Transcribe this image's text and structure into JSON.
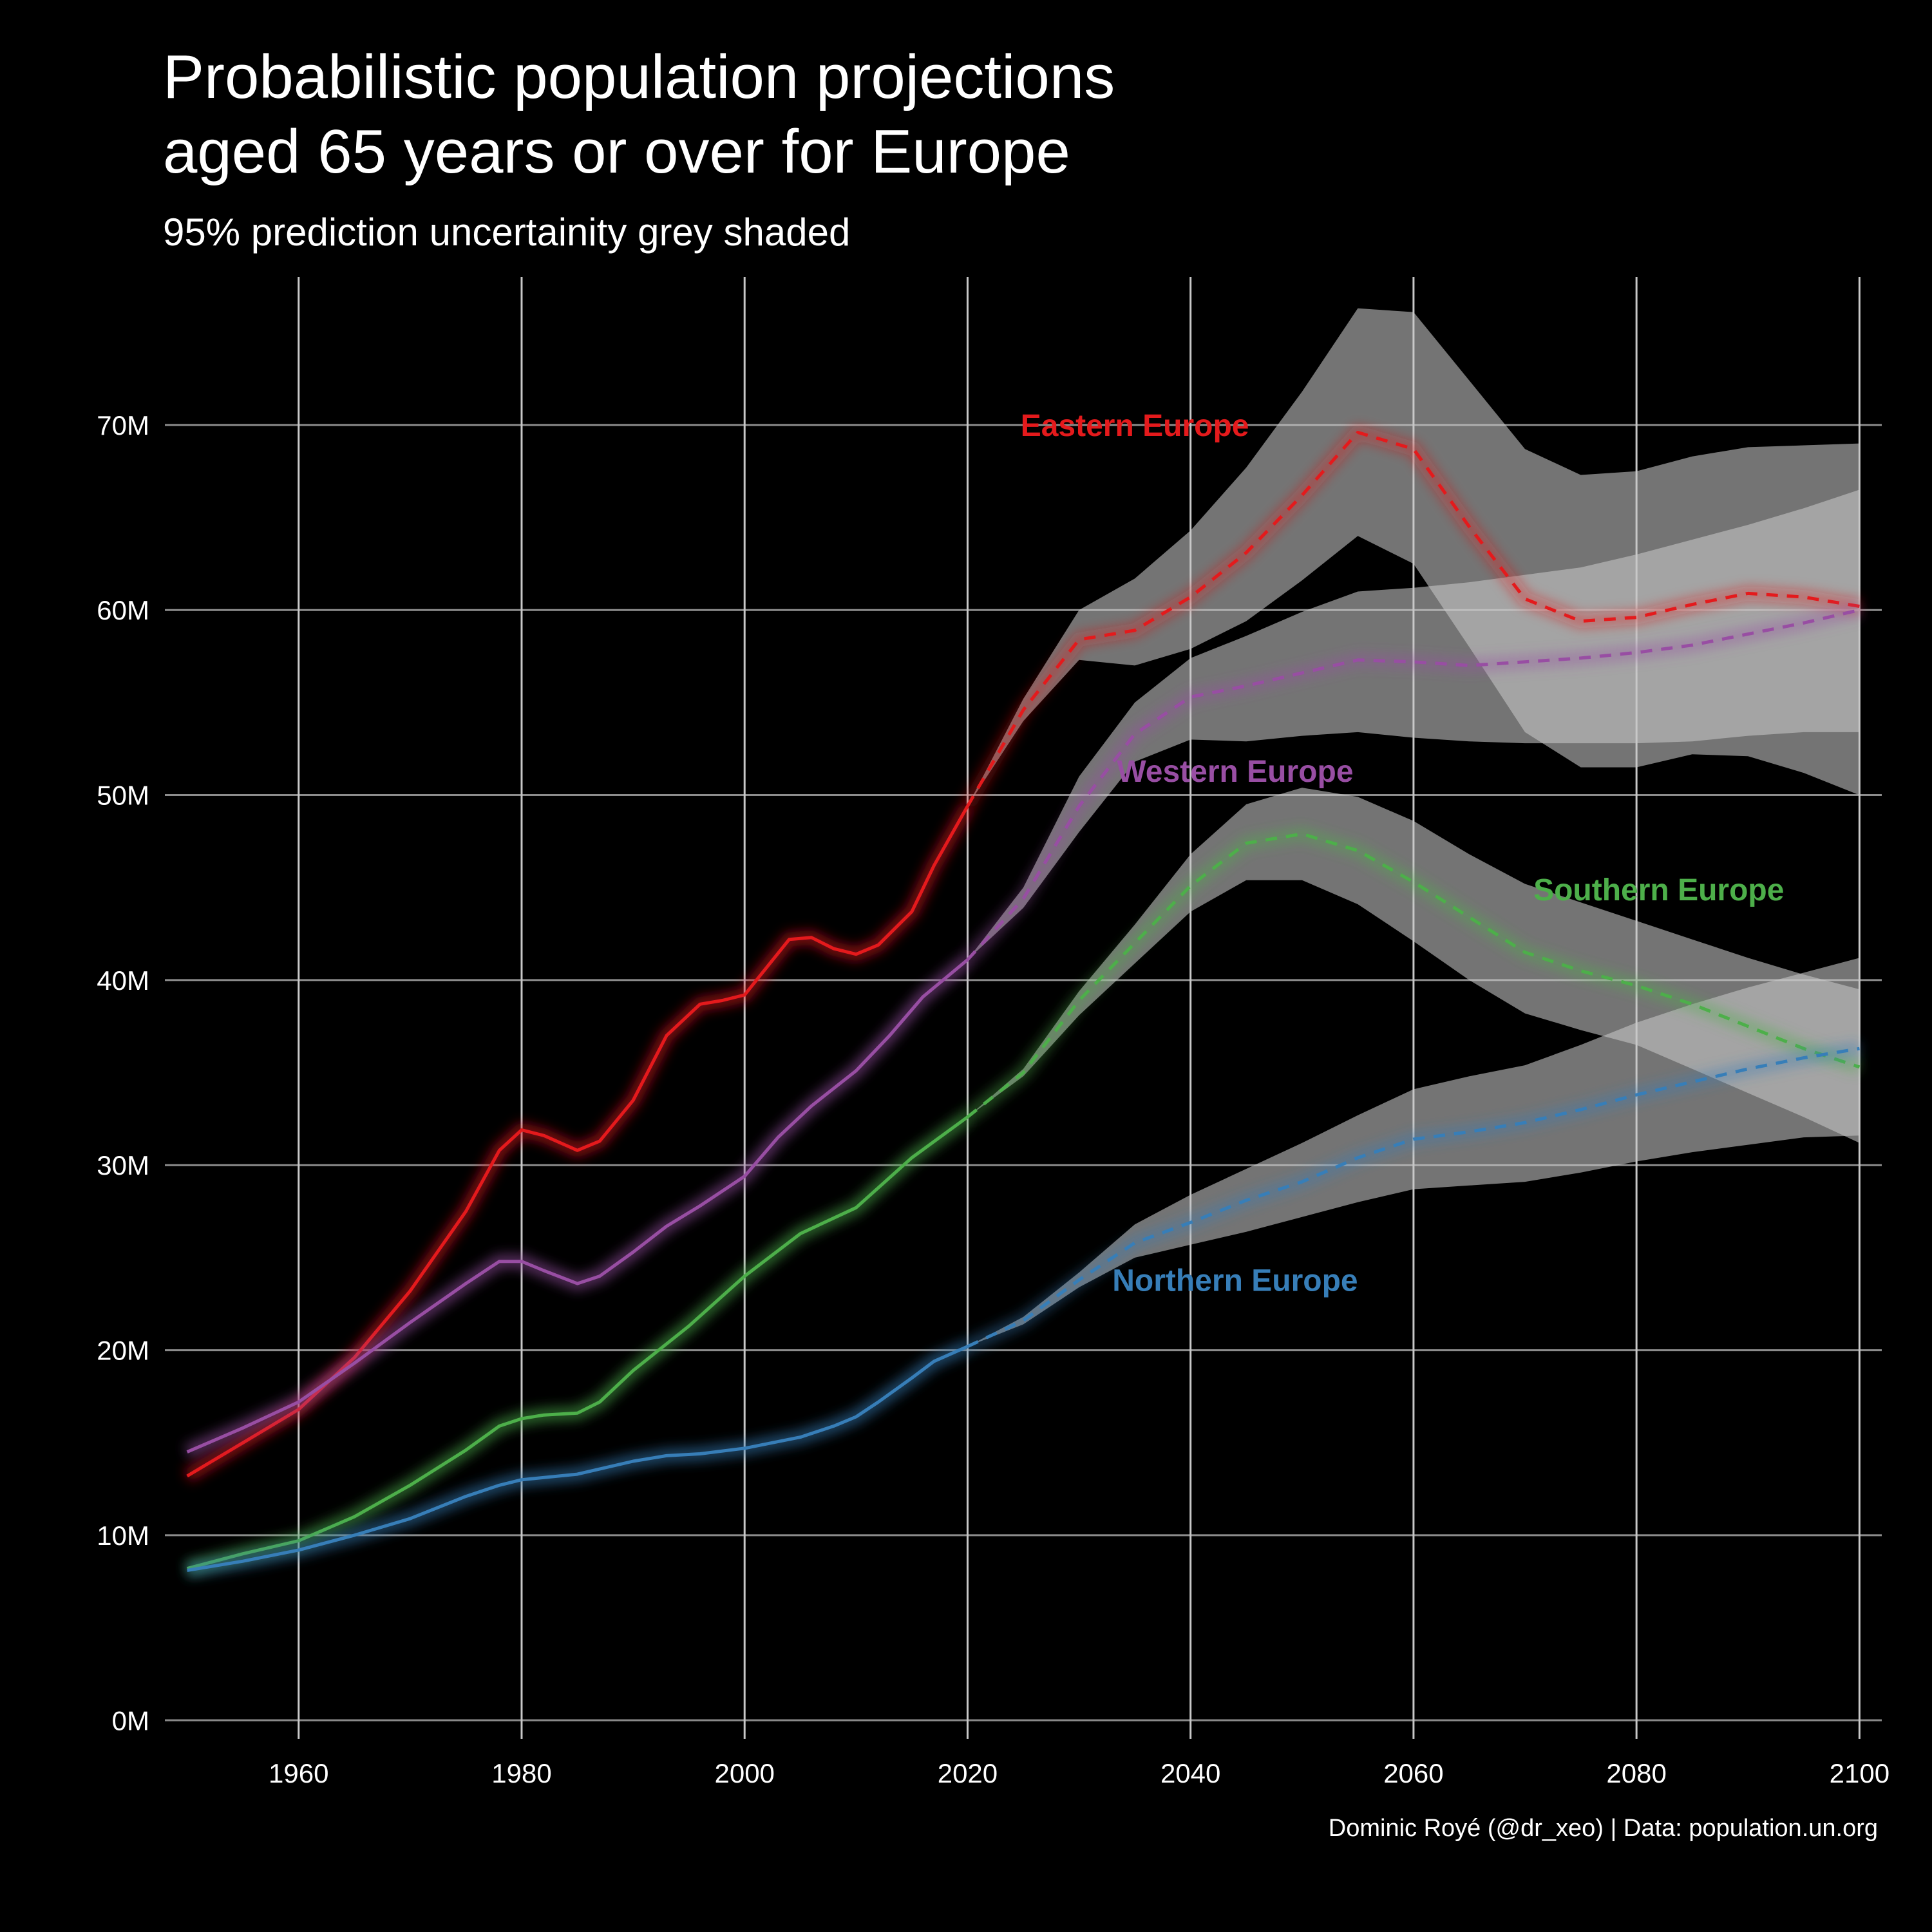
{
  "header": {
    "title": "Probabilistic population projections\naged 65 years or over for Europe",
    "subtitle": "95% prediction uncertainity grey shaded",
    "caption": "Dominic Royé (@dr_xeo) | Data: population.un.org"
  },
  "chart_data": {
    "type": "line",
    "title": "Probabilistic population projections aged 65 years or over for Europe",
    "subtitle": "95% prediction uncertainity grey shaded",
    "xlabel": "",
    "ylabel": "",
    "xlim": [
      1948,
      2102
    ],
    "ylim": [
      -1,
      78
    ],
    "x_ticks": [
      1960,
      1980,
      2000,
      2020,
      2040,
      2060,
      2080,
      2100
    ],
    "x_tick_labels": [
      "1960",
      "1980",
      "2000",
      "2020",
      "2040",
      "2060",
      "2080",
      "2100"
    ],
    "y_ticks": [
      0,
      10,
      20,
      30,
      40,
      50,
      60,
      70
    ],
    "y_tick_labels": [
      "0M",
      "10M",
      "20M",
      "30M",
      "40M",
      "50M",
      "60M",
      "70M"
    ],
    "grid": true,
    "legend": "none (direct labels)",
    "background": "#000000",
    "band_color": "#c8c8c8",
    "series": [
      {
        "name": "Eastern Europe",
        "color": "#e41a1c",
        "label_at": [
          2035,
          70
        ],
        "historic": {
          "x": [
            1950,
            1955,
            1960,
            1965,
            1970,
            1975,
            1978,
            1980,
            1982,
            1985,
            1987,
            1990,
            1993,
            1996,
            1998,
            2000,
            2002,
            2004,
            2006,
            2008,
            2010,
            2012,
            2015,
            2017,
            2020
          ],
          "y": [
            13.2,
            15,
            16.8,
            19.6,
            23.2,
            27.5,
            30.8,
            31.9,
            31.6,
            30.8,
            31.3,
            33.5,
            37,
            38.7,
            38.9,
            39.2,
            40.7,
            42.2,
            42.3,
            41.7,
            41.4,
            41.9,
            43.7,
            46.2,
            49.4
          ]
        },
        "projection": {
          "x": [
            2020,
            2025,
            2030,
            2035,
            2040,
            2045,
            2050,
            2055,
            2060,
            2065,
            2070,
            2075,
            2080,
            2085,
            2090,
            2095,
            2100
          ],
          "y": [
            49.4,
            54.6,
            58.4,
            58.9,
            60.7,
            63.1,
            66.2,
            69.6,
            68.7,
            64.5,
            60.6,
            59.4,
            59.6,
            60.3,
            60.9,
            60.7,
            60.2
          ]
        },
        "lower": [
          49.4,
          54,
          57.3,
          57,
          57.9,
          59.4,
          61.6,
          64,
          62.5,
          null,
          null,
          null,
          null,
          null,
          null,
          null,
          null
        ],
        "upper": [
          49.4,
          55.2,
          60,
          61.7,
          64.3,
          67.7,
          71.8,
          76.3,
          76.1,
          null,
          null,
          null,
          null,
          null,
          null,
          null,
          null
        ],
        "lower_tail_x": [
          2060,
          2065,
          2070,
          2075,
          2080,
          2085,
          2090,
          2095,
          2100
        ],
        "lower_tail": [
          62.5,
          58,
          53.4,
          51.5,
          51.5,
          52.2,
          52.1,
          51.2,
          50
        ],
        "upper_tail": [
          76.1,
          72.4,
          68.7,
          67.3,
          67.5,
          68.3,
          68.8,
          68.9,
          69
        ]
      },
      {
        "name": "Western Europe",
        "color": "#984ea3",
        "label_at": [
          2044,
          51.3
        ],
        "historic": {
          "x": [
            1950,
            1955,
            1960,
            1965,
            1970,
            1975,
            1978,
            1980,
            1982,
            1985,
            1987,
            1990,
            1993,
            1996,
            2000,
            2003,
            2006,
            2010,
            2013,
            2016,
            2020
          ],
          "y": [
            14.5,
            15.8,
            17.2,
            19.3,
            21.5,
            23.6,
            24.8,
            24.8,
            24.3,
            23.6,
            24,
            25.3,
            26.7,
            27.8,
            29.4,
            31.5,
            33.2,
            35.1,
            37,
            39.1,
            41.1
          ]
        },
        "projection": {
          "x": [
            2020,
            2025,
            2030,
            2035,
            2040,
            2045,
            2050,
            2055,
            2060,
            2065,
            2070,
            2075,
            2080,
            2085,
            2090,
            2095,
            2100
          ],
          "y": [
            41.1,
            44.4,
            49.4,
            53.3,
            55.3,
            55.9,
            56.6,
            57.3,
            57.2,
            57,
            57.2,
            57.4,
            57.7,
            58.1,
            58.7,
            59.3,
            60
          ]
        },
        "lower": [
          41.1,
          43.9,
          48,
          51.8,
          53,
          52.9,
          53.2,
          53.4,
          53.1,
          52.9,
          52.8,
          52.8,
          52.8,
          52.9,
          53.2,
          53.4,
          53.4
        ],
        "upper": [
          41.1,
          45,
          51,
          55,
          57.4,
          58.6,
          59.9,
          61,
          61.2,
          61.5,
          61.9,
          62.3,
          63,
          63.8,
          64.6,
          65.5,
          66.5
        ]
      },
      {
        "name": "Southern Europe",
        "color": "#4daf4a",
        "label_at": [
          2082,
          44.9
        ],
        "historic": {
          "x": [
            1950,
            1955,
            1960,
            1965,
            1970,
            1975,
            1978,
            1980,
            1982,
            1985,
            1987,
            1990,
            1995,
            2000,
            2005,
            2010,
            2015,
            2020
          ],
          "y": [
            8.2,
            9,
            9.7,
            11,
            12.7,
            14.6,
            15.9,
            16.3,
            16.5,
            16.6,
            17.2,
            18.9,
            21.3,
            24,
            26.3,
            27.7,
            30.4,
            32.6
          ]
        },
        "projection": {
          "x": [
            2020,
            2025,
            2030,
            2035,
            2040,
            2045,
            2050,
            2055,
            2060,
            2065,
            2070,
            2075,
            2080,
            2085,
            2090,
            2095,
            2100
          ],
          "y": [
            32.6,
            35,
            38.9,
            42,
            45.1,
            47.4,
            47.9,
            47,
            45.3,
            43.4,
            41.5,
            40.5,
            39.7,
            38.7,
            37.5,
            36.3,
            35.3
          ]
        },
        "lower": [
          32.6,
          34.8,
          38.1,
          40.9,
          43.7,
          45.4,
          45.4,
          44.1,
          42.1,
          40,
          38.2,
          37.3,
          36.5,
          35.2,
          33.9,
          32.6,
          31.2
        ],
        "upper": [
          32.6,
          35.2,
          39.4,
          43,
          46.8,
          49.5,
          50.4,
          49.9,
          48.6,
          46.8,
          45.2,
          44.2,
          43.2,
          42.2,
          41.2,
          40.3,
          39.5
        ]
      },
      {
        "name": "Northern Europe",
        "color": "#377eb8",
        "label_at": [
          2044,
          23.8
        ],
        "historic": {
          "x": [
            1950,
            1955,
            1960,
            1965,
            1970,
            1975,
            1978,
            1980,
            1985,
            1990,
            1993,
            1996,
            2000,
            2005,
            2008,
            2010,
            2012,
            2015,
            2017,
            2020
          ],
          "y": [
            8.1,
            8.6,
            9.2,
            10,
            10.9,
            12.1,
            12.7,
            13,
            13.3,
            14,
            14.3,
            14.4,
            14.7,
            15.3,
            15.9,
            16.4,
            17.2,
            18.5,
            19.4,
            20.2
          ]
        },
        "projection": {
          "x": [
            2020,
            2025,
            2030,
            2035,
            2040,
            2045,
            2050,
            2055,
            2060,
            2065,
            2070,
            2075,
            2080,
            2085,
            2090,
            2095,
            2100
          ],
          "y": [
            20.2,
            21.6,
            23.8,
            25.8,
            26.9,
            28.1,
            29.1,
            30.4,
            31.4,
            31.8,
            32.3,
            33,
            33.8,
            34.5,
            35.2,
            35.8,
            36.3
          ]
        },
        "lower": [
          20.2,
          21.4,
          23.4,
          25,
          25.7,
          26.4,
          27.2,
          28,
          28.7,
          28.9,
          29.1,
          29.6,
          30.2,
          30.7,
          31.1,
          31.5,
          31.6
        ],
        "upper": [
          20.2,
          21.8,
          24.2,
          26.8,
          28.4,
          29.8,
          31.2,
          32.7,
          34.1,
          34.8,
          35.4,
          36.5,
          37.7,
          38.7,
          39.6,
          40.4,
          41.2
        ]
      }
    ]
  }
}
